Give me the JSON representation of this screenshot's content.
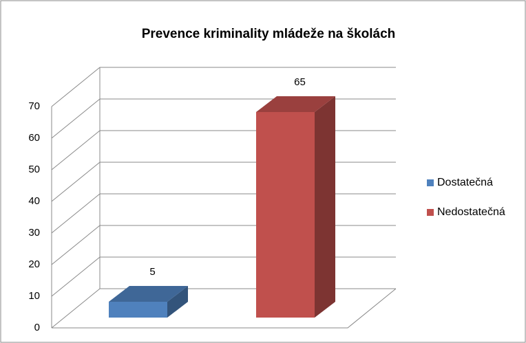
{
  "chart_data": {
    "type": "bar3d",
    "title": "Prevence kriminality mládeže na školách",
    "categories": [
      null
    ],
    "series": [
      {
        "name": "Dostatečná",
        "color": "#4f81bd",
        "values": [
          5
        ]
      },
      {
        "name": "Nedostatečná",
        "color": "#c0504d",
        "values": [
          65
        ]
      }
    ],
    "ylim": [
      0,
      70
    ],
    "yticks": [
      0,
      10,
      20,
      30,
      40,
      50,
      60,
      70
    ],
    "grid": true,
    "legend": "right"
  }
}
